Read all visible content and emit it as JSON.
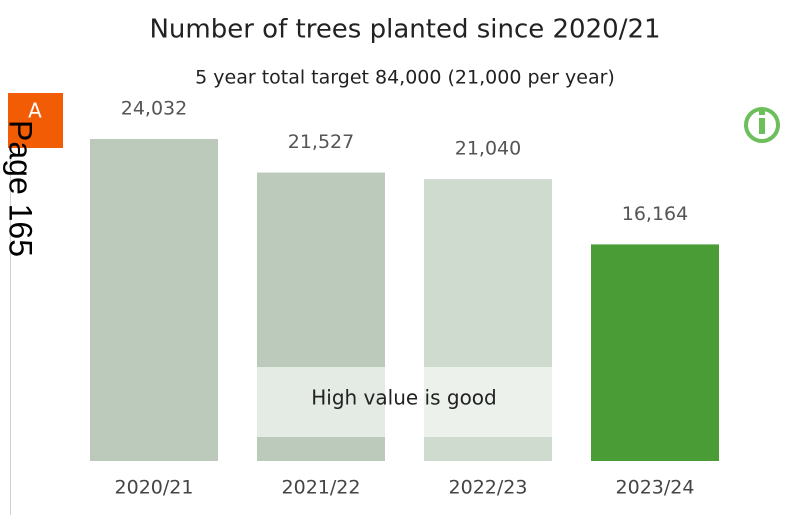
{
  "chart_data": {
    "type": "bar",
    "title": "Number of trees planted since 2020/21",
    "subtitle": "5 year total target 84,000 (21,000 per year)",
    "categories": [
      "2020/21",
      "2021/22",
      "2022/23",
      "2023/24"
    ],
    "values": [
      24032,
      21527,
      21040,
      16164
    ],
    "value_labels": [
      "24,032",
      "21,527",
      "21,040",
      "16,164"
    ],
    "colors": [
      "#bccabb",
      "#bccabb",
      "#d0dbd0",
      "#4a9c37"
    ],
    "annotation": "High value is good"
  },
  "badge": "A",
  "page_label": "Page 165"
}
